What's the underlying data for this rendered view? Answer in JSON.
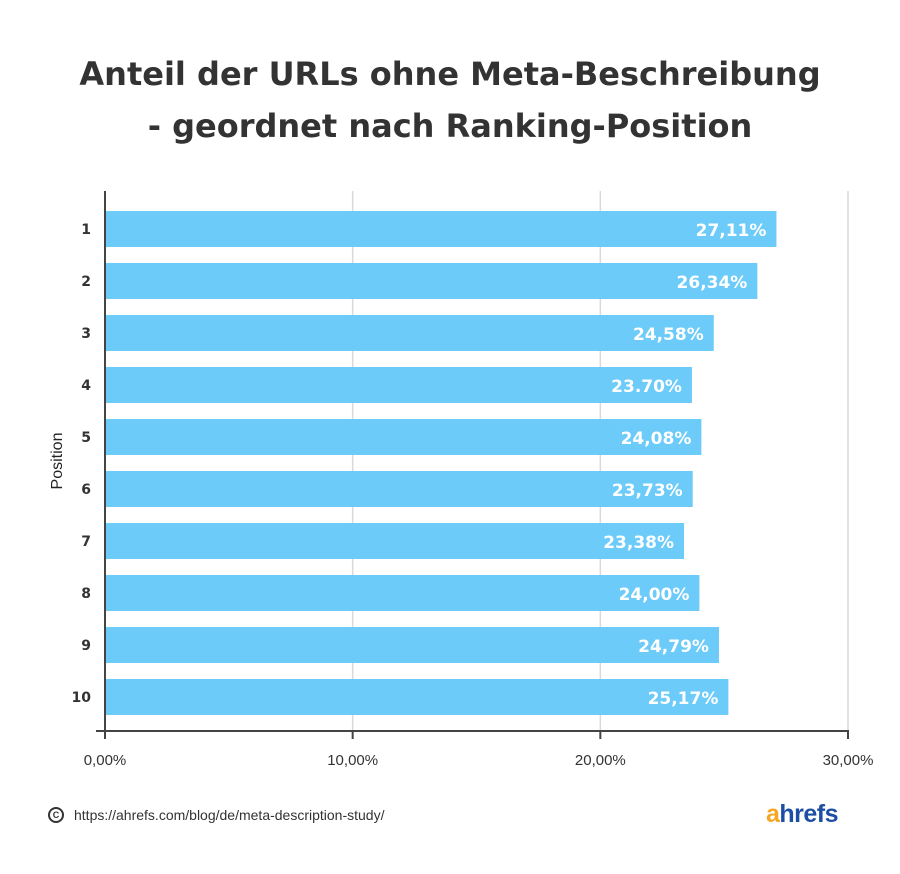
{
  "title_lines": [
    "Anteil der URLs ohne Meta-Beschreibung",
    "- geordnet nach Ranking-Position"
  ],
  "footer": {
    "url": "https://ahrefs.com/blog/de/meta-description-study/",
    "brand_first": "a",
    "brand_rest": "hrefs"
  },
  "colors": {
    "bar": "#6ccbf9",
    "bar_label": "#ffffff",
    "text": "#333333",
    "grid": "#d9d9d9",
    "axis": "#444444",
    "brand_orange": "#f5a623",
    "brand_blue": "#1d4ea5"
  },
  "chart_data": {
    "type": "bar",
    "orientation": "horizontal",
    "title": "Anteil der URLs ohne Meta-Beschreibung - geordnet nach Ranking-Position",
    "ylabel": "Position",
    "xlabel": "",
    "categories": [
      "1",
      "2",
      "3",
      "4",
      "5",
      "6",
      "7",
      "8",
      "9",
      "10"
    ],
    "values": [
      27.11,
      26.34,
      24.58,
      23.7,
      24.08,
      23.73,
      23.38,
      24.0,
      24.79,
      25.17
    ],
    "value_labels": [
      "27,11%",
      "26,34%",
      "24,58%",
      "23.70%",
      "24,08%",
      "23,73%",
      "23,38%",
      "24,00%",
      "24,79%",
      "25,17%"
    ],
    "xlim": [
      0,
      30
    ],
    "xticks": [
      0,
      10,
      20,
      30
    ],
    "xtick_labels": [
      "0,00%",
      "10,00%",
      "20,00%",
      "30,00%"
    ],
    "grid": true,
    "legend": "none"
  }
}
